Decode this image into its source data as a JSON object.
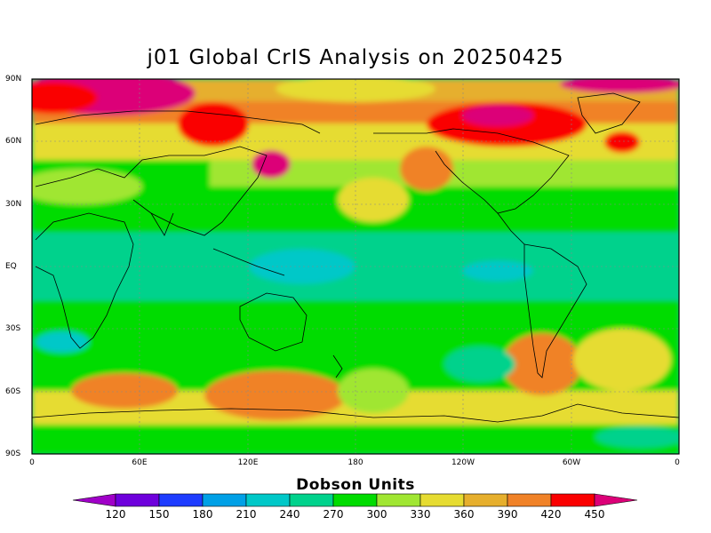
{
  "title": "j01 Global CrIS Analysis on 20250425",
  "lat_labels": [
    "90N",
    "60N",
    "30N",
    "EQ",
    "30S",
    "60S",
    "90S"
  ],
  "lon_labels": [
    "0",
    "60E",
    "120E",
    "180",
    "120W",
    "60W",
    "0"
  ],
  "colorbar": {
    "title": "Dobson Units",
    "ticks": [
      "120",
      "150",
      "180",
      "210",
      "240",
      "270",
      "300",
      "330",
      "360",
      "390",
      "420",
      "450"
    ],
    "colors": [
      "#a000c8",
      "#6e00dc",
      "#1e3cff",
      "#00a0e6",
      "#00c8c8",
      "#00d28c",
      "#00dc00",
      "#a0e632",
      "#e6dc32",
      "#e6af2d",
      "#f08228",
      "#fa0000",
      "#dc0078"
    ]
  },
  "legend_units": "Dobson Units"
}
